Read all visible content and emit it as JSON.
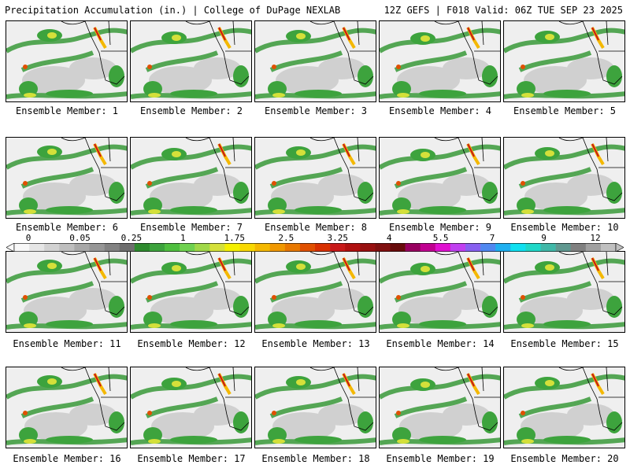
{
  "header": {
    "left": "Precipitation Accumulation (in.) | College of DuPage NEXLAB",
    "right": "12Z GEFS | F018 Valid: 06Z TUE SEP 23 2025"
  },
  "colorbar": {
    "tick_labels": [
      "0",
      "0.05",
      "0.25",
      "1",
      "1.75",
      "2.5",
      "3.25",
      "4",
      "5.5",
      "7",
      "9",
      "12"
    ],
    "colors": [
      "#f8f8f8",
      "#e6e6e6",
      "#d2d2d2",
      "#bebebe",
      "#a8a8a8",
      "#969696",
      "#828282",
      "#6e6e6e",
      "#2e8b2e",
      "#3da33d",
      "#4fbf3f",
      "#6fd14f",
      "#a0d848",
      "#d4e03a",
      "#f4f000",
      "#f8d800",
      "#f4b800",
      "#f09800",
      "#e87800",
      "#e05000",
      "#d83000",
      "#c81818",
      "#b01010",
      "#981010",
      "#801010",
      "#680c0c",
      "#980060",
      "#c00090",
      "#e010d0",
      "#c040f0",
      "#8860f0",
      "#5088f0",
      "#20b0f0",
      "#10e0f0",
      "#20d8c8",
      "#40b8a8",
      "#609890",
      "#808080",
      "#a0a0a0",
      "#c0c0c0"
    ]
  },
  "panels": [
    {
      "label": "Ensemble Member: 1"
    },
    {
      "label": "Ensemble Member: 2"
    },
    {
      "label": "Ensemble Member: 3"
    },
    {
      "label": "Ensemble Member: 4"
    },
    {
      "label": "Ensemble Member: 5"
    },
    {
      "label": "Ensemble Member: 6"
    },
    {
      "label": "Ensemble Member: 7"
    },
    {
      "label": "Ensemble Member: 8"
    },
    {
      "label": "Ensemble Member: 9"
    },
    {
      "label": "Ensemble Member: 10"
    },
    {
      "label": "Ensemble Member: 11"
    },
    {
      "label": "Ensemble Member: 12"
    },
    {
      "label": "Ensemble Member: 13"
    },
    {
      "label": "Ensemble Member: 14"
    },
    {
      "label": "Ensemble Member: 15"
    },
    {
      "label": "Ensemble Member: 16"
    },
    {
      "label": "Ensemble Member: 17"
    },
    {
      "label": "Ensemble Member: 18"
    },
    {
      "label": "Ensemble Member: 19"
    },
    {
      "label": "Ensemble Member: 20"
    }
  ]
}
